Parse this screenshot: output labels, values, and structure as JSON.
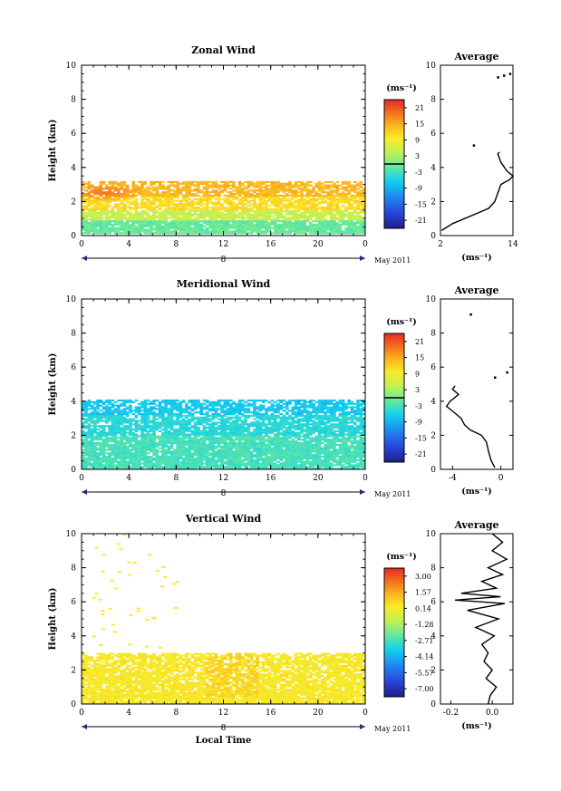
{
  "chart_data": [
    {
      "type": "heatmap",
      "title": "Zonal Wind",
      "xlabel": "",
      "ylabel": "Height (km)",
      "x_ticks": [
        "0",
        "4",
        "8",
        "12",
        "16",
        "20",
        "0"
      ],
      "xlim": [
        0,
        24
      ],
      "y_ticks": [
        "0",
        "2",
        "4",
        "6",
        "8",
        "10"
      ],
      "ylim": [
        0,
        10
      ],
      "date_bar": {
        "day": "8",
        "month_label": "May 2011"
      },
      "colorbar": {
        "unit": "(ms⁻¹)",
        "ticks": [
          "21",
          "15",
          "9",
          "3",
          "-3",
          "-9",
          "-15",
          "-21"
        ],
        "range": [
          -24,
          24
        ],
        "zero_line": 0
      },
      "field": {
        "height_range": [
          0,
          3.3
        ],
        "layers": [
          {
            "hmin": 0.1,
            "hmax": 0.8,
            "value": -1
          },
          {
            "hmin": 0.8,
            "hmax": 1.5,
            "value": 5
          },
          {
            "hmin": 1.5,
            "hmax": 2.3,
            "value": 11
          },
          {
            "hmin": 2.3,
            "hmax": 3.2,
            "value": 14
          }
        ],
        "core": {
          "x": 1.8,
          "h": 2.5,
          "value": 19
        },
        "coverage": "sparse below 0.5 km and above 3 km"
      },
      "average_profile": {
        "title": "Average",
        "unit": "(ms⁻¹)",
        "x_ticks": [
          "2",
          "14"
        ],
        "xlim": [
          2,
          14
        ],
        "ylim": [
          0,
          10
        ],
        "points": [
          [
            2.2,
            0.3
          ],
          [
            4,
            0.7
          ],
          [
            6,
            1.0
          ],
          [
            8,
            1.3
          ],
          [
            10,
            1.6
          ],
          [
            11,
            2.0
          ],
          [
            11.5,
            2.5
          ],
          [
            12,
            3.0
          ],
          [
            13.5,
            3.3
          ],
          [
            14,
            3.5
          ],
          [
            13,
            3.8
          ],
          [
            12,
            4.3
          ],
          [
            11.5,
            4.8
          ],
          [
            11.8,
            4.9
          ]
        ],
        "isolated_points": [
          [
            7.5,
            5.3
          ],
          [
            11.5,
            9.3
          ],
          [
            12.5,
            9.4
          ],
          [
            13.5,
            9.5
          ]
        ]
      }
    },
    {
      "type": "heatmap",
      "title": "Meridional Wind",
      "xlabel": "",
      "ylabel": "Height (km)",
      "x_ticks": [
        "0",
        "4",
        "8",
        "12",
        "16",
        "20",
        "0"
      ],
      "xlim": [
        0,
        24
      ],
      "y_ticks": [
        "0",
        "2",
        "4",
        "6",
        "8",
        "10"
      ],
      "ylim": [
        0,
        10
      ],
      "date_bar": {
        "day": "8",
        "month_label": "May 2011"
      },
      "colorbar": {
        "unit": "(ms⁻¹)",
        "ticks": [
          "21",
          "15",
          "9",
          "3",
          "-3",
          "-9",
          "-15",
          "-21"
        ],
        "range": [
          -24,
          24
        ],
        "zero_line": 0
      },
      "field": {
        "height_range": [
          0,
          4.1
        ],
        "layers": [
          {
            "hmin": 0.0,
            "hmax": 2.0,
            "value": -3
          },
          {
            "hmin": 2.0,
            "hmax": 3.2,
            "value": -5
          },
          {
            "hmin": 3.2,
            "hmax": 4.1,
            "value": -7
          }
        ],
        "coverage": "patchy in the upper part of the layer"
      },
      "average_profile": {
        "title": "Average",
        "unit": "(ms⁻¹)",
        "x_ticks": [
          "-4",
          "0"
        ],
        "xlim": [
          -5,
          1
        ],
        "ylim": [
          0,
          10
        ],
        "points": [
          [
            -0.5,
            0.1
          ],
          [
            -0.8,
            0.5
          ],
          [
            -1.0,
            1.0
          ],
          [
            -1.2,
            1.6
          ],
          [
            -1.6,
            2.0
          ],
          [
            -2.5,
            2.3
          ],
          [
            -3.0,
            2.6
          ],
          [
            -3.3,
            3.0
          ],
          [
            -3.8,
            3.3
          ],
          [
            -4.5,
            3.7
          ],
          [
            -4.2,
            4.0
          ],
          [
            -3.5,
            4.4
          ],
          [
            -4.0,
            4.7
          ],
          [
            -3.8,
            4.9
          ]
        ],
        "isolated_points": [
          [
            -2.5,
            9.1
          ],
          [
            -0.5,
            5.4
          ],
          [
            0.5,
            5.7
          ]
        ]
      }
    },
    {
      "type": "heatmap",
      "title": "Vertical Wind",
      "xlabel": "Local Time",
      "ylabel": "Height (km)",
      "x_ticks": [
        "0",
        "4",
        "8",
        "12",
        "16",
        "20",
        "0"
      ],
      "xlim": [
        0,
        24
      ],
      "y_ticks": [
        "0",
        "2",
        "4",
        "6",
        "8",
        "10"
      ],
      "ylim": [
        0,
        10
      ],
      "date_bar": {
        "day": "8",
        "month_label": "May 2011"
      },
      "colorbar": {
        "unit": "(ms⁻¹)",
        "ticks": [
          "3.00",
          "1.57",
          "0.14",
          "-1.28",
          "-2.71",
          "-4.14",
          "-5.57",
          "-7.00"
        ],
        "range": [
          -7.71,
          3.71
        ],
        "zero_line": null
      },
      "field": {
        "height_range": [
          0,
          3.0
        ],
        "layers": [
          {
            "hmin": 0.0,
            "hmax": 3.0,
            "value": 0.3
          }
        ],
        "hot_spots": [
          {
            "x0": 10.5,
            "x1": 15,
            "hmin": 0.4,
            "hmax": 3.0,
            "value": 0.9
          }
        ],
        "coverage": "sparse values up to 10 km at 0-8 LT"
      },
      "average_profile": {
        "title": "Average",
        "unit": "(ms⁻¹)",
        "x_ticks": [
          "-0.2",
          "0.0"
        ],
        "xlim": [
          -0.25,
          0.1
        ],
        "ylim": [
          0,
          10
        ],
        "points": [
          [
            -0.02,
            0.0
          ],
          [
            -0.01,
            0.5
          ],
          [
            0.02,
            1.0
          ],
          [
            -0.03,
            1.5
          ],
          [
            0.0,
            2.0
          ],
          [
            -0.04,
            2.5
          ],
          [
            -0.02,
            3.0
          ],
          [
            -0.05,
            3.5
          ],
          [
            0.01,
            4.0
          ],
          [
            -0.08,
            4.5
          ],
          [
            0.03,
            5.0
          ],
          [
            -0.12,
            5.5
          ],
          [
            0.06,
            5.9
          ],
          [
            -0.18,
            6.1
          ],
          [
            0.04,
            6.3
          ],
          [
            -0.15,
            6.5
          ],
          [
            0.02,
            6.8
          ],
          [
            -0.05,
            7.2
          ],
          [
            0.05,
            7.6
          ],
          [
            -0.02,
            8.0
          ],
          [
            0.07,
            8.5
          ],
          [
            0.0,
            9.0
          ],
          [
            0.05,
            9.5
          ],
          [
            0.0,
            10.0
          ]
        ],
        "isolated_points": []
      }
    }
  ]
}
